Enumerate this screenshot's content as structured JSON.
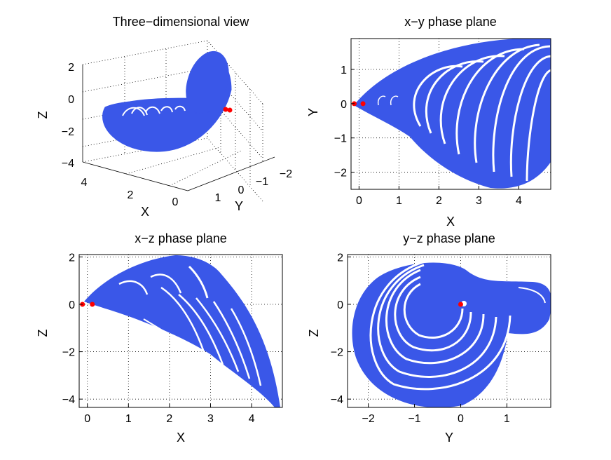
{
  "chart_data": [
    {
      "id": "view3d",
      "type": "scatter",
      "title": "Three−dimensional view",
      "xlabel": "X",
      "ylabel": "Y",
      "zlabel": "Z",
      "x_ticks": [
        "4",
        "2",
        "0"
      ],
      "y_ticks": [
        "1",
        "0",
        "−1",
        "−2"
      ],
      "z_ticks": [
        "2",
        "0",
        "−2",
        "−4"
      ],
      "xlim": [
        -0.2,
        4.8
      ],
      "ylim": [
        -2.5,
        1.9
      ],
      "zlim": [
        -4.3,
        2.1
      ],
      "grid": true,
      "series_color": "#3a57e8",
      "marker_color": "#ff0000",
      "equilibria": [
        [
          0.0,
          0.0,
          0.0
        ],
        [
          0.1,
          0.0,
          0.0
        ]
      ]
    },
    {
      "id": "xy",
      "type": "scatter",
      "title": "x−y phase plane",
      "xlabel": "X",
      "ylabel": "Y",
      "xlim": [
        -0.2,
        4.8
      ],
      "ylim": [
        -2.5,
        1.9
      ],
      "x_ticks": [
        {
          "value": 0,
          "label": "0"
        },
        {
          "value": 1,
          "label": "1"
        },
        {
          "value": 2,
          "label": "2"
        },
        {
          "value": 3,
          "label": "3"
        },
        {
          "value": 4,
          "label": "4"
        }
      ],
      "y_ticks": [
        {
          "value": 1,
          "label": "1"
        },
        {
          "value": 0,
          "label": "0"
        },
        {
          "value": -1,
          "label": "−1"
        },
        {
          "value": -2,
          "label": "−2"
        }
      ],
      "grid": true,
      "series_color": "#3a57e8",
      "marker_color": "#ff0000",
      "equilibria": [
        [
          -0.12,
          0.0
        ],
        [
          0.1,
          0.0
        ]
      ]
    },
    {
      "id": "xz",
      "type": "scatter",
      "title": "x−z phase plane",
      "xlabel": "X",
      "ylabel": "Z",
      "xlim": [
        -0.2,
        4.75
      ],
      "ylim": [
        -4.35,
        2.1
      ],
      "x_ticks": [
        {
          "value": 0,
          "label": "0"
        },
        {
          "value": 1,
          "label": "1"
        },
        {
          "value": 2,
          "label": "2"
        },
        {
          "value": 3,
          "label": "3"
        },
        {
          "value": 4,
          "label": "4"
        }
      ],
      "y_ticks": [
        {
          "value": 2,
          "label": "2"
        },
        {
          "value": 0,
          "label": "0"
        },
        {
          "value": -2,
          "label": "−2"
        },
        {
          "value": -4,
          "label": "−4"
        }
      ],
      "grid": true,
      "series_color": "#3a57e8",
      "marker_color": "#ff0000",
      "equilibria": [
        [
          -0.12,
          0.0
        ],
        [
          0.12,
          0.0
        ]
      ]
    },
    {
      "id": "yz",
      "type": "scatter",
      "title": "y−z phase plane",
      "xlabel": "Y",
      "ylabel": "Z",
      "xlim": [
        -2.45,
        1.95
      ],
      "ylim": [
        -4.35,
        2.1
      ],
      "x_ticks": [
        {
          "value": -2,
          "label": "−2"
        },
        {
          "value": -1,
          "label": "−1"
        },
        {
          "value": 0,
          "label": "0"
        },
        {
          "value": 1,
          "label": "1"
        }
      ],
      "y_ticks": [
        {
          "value": 2,
          "label": "2"
        },
        {
          "value": 0,
          "label": "0"
        },
        {
          "value": -2,
          "label": "−2"
        },
        {
          "value": -4,
          "label": "−4"
        }
      ],
      "grid": true,
      "series_color": "#3a57e8",
      "marker_color": "#ff0000",
      "equilibria": [
        [
          0.0,
          0.0
        ]
      ]
    }
  ]
}
